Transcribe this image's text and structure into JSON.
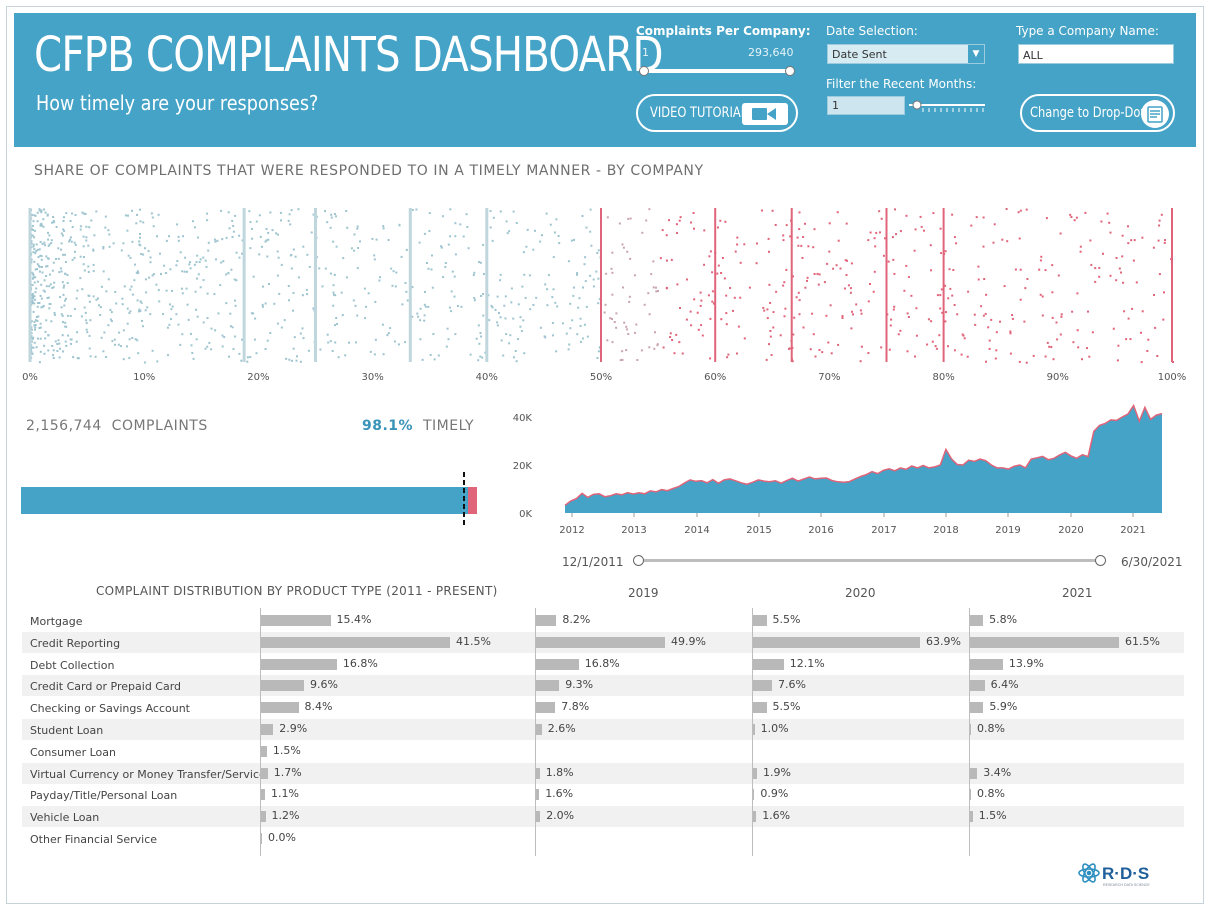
{
  "header": {
    "title": "CFPB COMPLAINTS DASHBOARD",
    "subtitle": "How timely are your responses?",
    "complaints_per_company": {
      "label": "Complaints Per Company:",
      "min": "1",
      "max": "293,640"
    },
    "date_selection": {
      "label": "Date Selection:",
      "value": "Date Sent"
    },
    "company_name": {
      "label": "Type a Company Name:",
      "value": "ALL"
    },
    "recent_months": {
      "label": "Filter the Recent Months:",
      "value": "1"
    },
    "video_button": "VIDEO TUTORIAL",
    "dropdown_button": "Change to Drop-Down"
  },
  "dot_plot": {
    "title": "SHARE OF COMPLAINTS THAT WERE RESPONDED TO IN A TIMELY MANNER - BY COMPANY",
    "ticks": [
      "0%",
      "10%",
      "20%",
      "30%",
      "40%",
      "50%",
      "60%",
      "70%",
      "80%",
      "90%",
      "100%"
    ]
  },
  "stats": {
    "complaints_value": "2,156,744",
    "complaints_label": "COMPLAINTS",
    "timely_value": "98.1%",
    "timely_label": "TIMELY",
    "timely_fraction": 0.981
  },
  "colors": {
    "header": "#44a3c6",
    "series": "#44a3c6",
    "late": "#e0647a",
    "bar_grey": "#b9b9b9"
  },
  "chart_data": {
    "type": "area",
    "x": [
      2012,
      2013,
      2014,
      2015,
      2016,
      2017,
      2018,
      2019,
      2020,
      2021
    ],
    "ticks_y": [
      "40K",
      "20K",
      "0K"
    ],
    "ylim": [
      0,
      45000
    ],
    "monthly_values": [
      3200,
      5000,
      6000,
      8200,
      6500,
      7800,
      8000,
      6800,
      7200,
      8000,
      7600,
      8500,
      7900,
      8400,
      8000,
      9200,
      8800,
      9800,
      9300,
      10200,
      11000,
      12500,
      13800,
      13200,
      13500,
      12600,
      13900,
      12400,
      13800,
      14200,
      13400,
      12600,
      12000,
      12800,
      13800,
      13300,
      13000,
      13400,
      12400,
      13500,
      14500,
      13300,
      14200,
      15000,
      14200,
      14500,
      14600,
      13500,
      13000,
      12800,
      13100,
      14200,
      15200,
      16000,
      17200,
      16400,
      17800,
      18400,
      17600,
      18800,
      18200,
      19600,
      18800,
      19800,
      18800,
      19200,
      20000,
      26500,
      22500,
      20200,
      20000,
      22000,
      21500,
      22500,
      21800,
      20000,
      18800,
      18800,
      18300,
      19500,
      20000,
      18800,
      22500,
      23000,
      23600,
      22200,
      22800,
      24200,
      25300,
      23800,
      22800,
      24300,
      23500,
      34000,
      36500,
      37300,
      38800,
      38600,
      40000,
      41200,
      44800,
      38300,
      44000,
      39000,
      40800,
      41400
    ],
    "date_range_start": "12/1/2011",
    "date_range_end": "6/30/2021"
  },
  "distribution": {
    "title": "COMPLAINT DISTRIBUTION BY PRODUCT TYPE (2011 - PRESENT)",
    "years": [
      "2019",
      "2020",
      "2021"
    ],
    "rows": [
      {
        "label": "Mortgage",
        "all": "15.4%",
        "y2019": "8.2%",
        "y2020": "5.5%",
        "y2021": "5.8%",
        "v": [
          15.4,
          8.2,
          5.5,
          5.8
        ]
      },
      {
        "label": "Credit Reporting",
        "all": "41.5%",
        "y2019": "49.9%",
        "y2020": "63.9%",
        "y2021": "61.5%",
        "v": [
          41.5,
          49.9,
          63.9,
          61.5
        ]
      },
      {
        "label": "Debt Collection",
        "all": "16.8%",
        "y2019": "16.8%",
        "y2020": "12.1%",
        "y2021": "13.9%",
        "v": [
          16.8,
          16.8,
          12.1,
          13.9
        ]
      },
      {
        "label": "Credit Card or Prepaid Card",
        "all": "9.6%",
        "y2019": "9.3%",
        "y2020": "7.6%",
        "y2021": "6.4%",
        "v": [
          9.6,
          9.3,
          7.6,
          6.4
        ]
      },
      {
        "label": "Checking or Savings Account",
        "all": "8.4%",
        "y2019": "7.8%",
        "y2020": "5.5%",
        "y2021": "5.9%",
        "v": [
          8.4,
          7.8,
          5.5,
          5.9
        ]
      },
      {
        "label": "Student Loan",
        "all": "2.9%",
        "y2019": "2.6%",
        "y2020": "1.0%",
        "y2021": "0.8%",
        "v": [
          2.9,
          2.6,
          1.0,
          0.8
        ]
      },
      {
        "label": "Consumer Loan",
        "all": "1.5%",
        "y2019": "",
        "y2020": "",
        "y2021": "",
        "v": [
          1.5,
          null,
          null,
          null
        ]
      },
      {
        "label": "Virtual Currency or Money Transfer/Service",
        "all": "1.7%",
        "y2019": "1.8%",
        "y2020": "1.9%",
        "y2021": "3.4%",
        "v": [
          1.7,
          1.8,
          1.9,
          3.4
        ]
      },
      {
        "label": "Payday/Title/Personal Loan",
        "all": "1.1%",
        "y2019": "1.6%",
        "y2020": "0.9%",
        "y2021": "0.8%",
        "v": [
          1.1,
          1.6,
          0.9,
          0.8
        ]
      },
      {
        "label": "Vehicle Loan",
        "all": "1.2%",
        "y2019": "2.0%",
        "y2020": "1.6%",
        "y2021": "1.5%",
        "v": [
          1.2,
          2.0,
          1.6,
          1.5
        ]
      },
      {
        "label": "Other Financial Service",
        "all": "0.0%",
        "y2019": "",
        "y2020": "",
        "y2021": "",
        "v": [
          0.0,
          null,
          null,
          null
        ]
      }
    ]
  },
  "logo": {
    "text": "R·D·S",
    "tagline": "RESEARCH DATA SCIENCE"
  }
}
